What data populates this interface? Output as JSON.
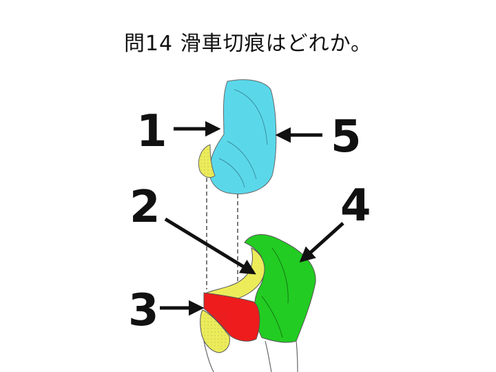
{
  "question": {
    "title": "問14 滑車切痕はどれか。"
  },
  "labels": [
    {
      "number": "1"
    },
    {
      "number": "2"
    },
    {
      "number": "3"
    },
    {
      "number": "4"
    },
    {
      "number": "5"
    }
  ],
  "colors": {
    "region_1": "#5ad8ea",
    "region_2": "#ecec5a",
    "region_3": "#ee1c1c",
    "region_4": "#22cc22",
    "bone_outline": "#555555",
    "arrow": "#111111"
  }
}
